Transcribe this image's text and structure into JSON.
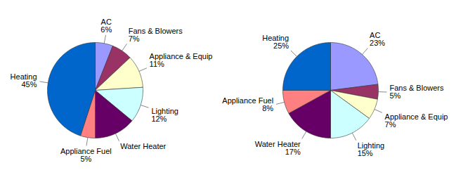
{
  "chart_data": [
    {
      "type": "pie",
      "categories": [
        "AC",
        "Fans & Blowers",
        "Appliance & Equip",
        "Lighting",
        "Water Heater",
        "Appliance Fuel",
        "Heating"
      ],
      "values": [
        6,
        7,
        11,
        12,
        14,
        5,
        45
      ],
      "value_labels": [
        "6%",
        "7%",
        "11%",
        "12%",
        null,
        "5%",
        "45%"
      ],
      "colors": [
        "#9999ff",
        "#993366",
        "#ffffcc",
        "#ccffff",
        "#660066",
        "#ff8080",
        "#0066cc"
      ],
      "data_labels": true
    },
    {
      "type": "pie",
      "categories": [
        "AC",
        "Fans & Blowers",
        "Appliance & Equip",
        "Lighting",
        "Water Heater",
        "Appliance Fuel",
        "Heating"
      ],
      "values": [
        23,
        5,
        7,
        15,
        17,
        8,
        25
      ],
      "value_labels": [
        "23%",
        "5%",
        "7%",
        "15%",
        "17%",
        "8%",
        "25%"
      ],
      "colors": [
        "#9999ff",
        "#993366",
        "#ffffcc",
        "#ccffff",
        "#660066",
        "#ff8080",
        "#0066cc"
      ],
      "data_labels": true
    }
  ]
}
